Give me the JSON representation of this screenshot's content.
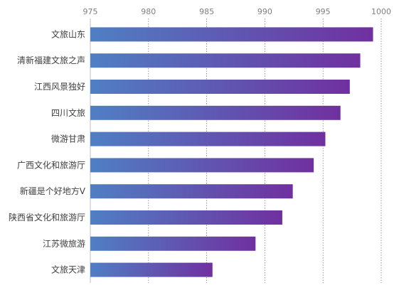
{
  "chart_data": {
    "type": "bar",
    "orientation": "horizontal",
    "title": "",
    "xlabel": "",
    "ylabel": "",
    "xlim": [
      975,
      1000
    ],
    "xticks": [
      975,
      980,
      985,
      990,
      995,
      1000
    ],
    "grid": "vertical dotted",
    "legend": "none",
    "categories": [
      "文旅山东",
      "清新福建文旅之声",
      "江西风景独好",
      "四川文旅",
      "微游甘肃",
      "广西文化和旅游厅",
      "新疆是个好地方V",
      "陕西省文化和旅游厅",
      "江苏微旅游",
      "文旅天津"
    ],
    "values": [
      999.3,
      998.2,
      997.3,
      996.5,
      995.2,
      994.2,
      992.4,
      991.5,
      989.2,
      985.5
    ],
    "colors": {
      "bar_start": "#4f7fc4",
      "bar_end": "#7030a0",
      "grid": "#808080",
      "axis": "#bfbfbf",
      "label": "#404040",
      "tick": "#7f7f7f"
    }
  }
}
